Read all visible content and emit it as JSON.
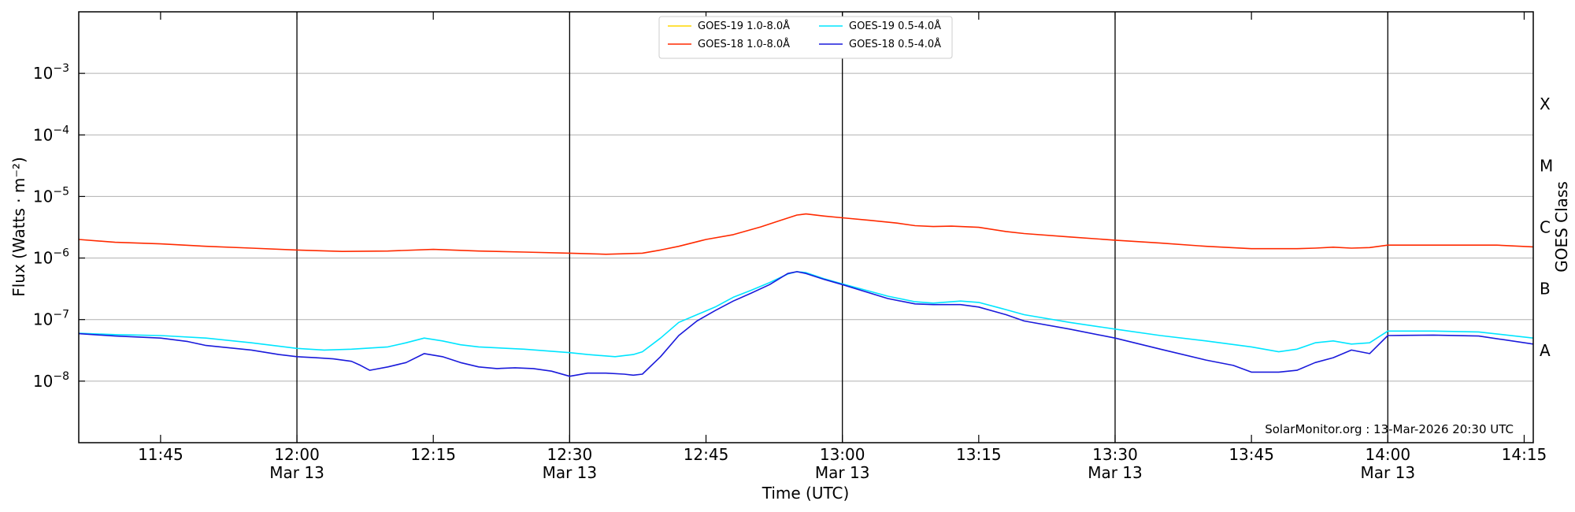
{
  "chart_data": {
    "type": "line",
    "xlabel": "Time (UTC)",
    "ylabel": "Flux (Watts · m⁻²)",
    "right_ylabel": "GOES Class",
    "credit": "SolarMonitor.org : 13-Mar-2026 20:30 UTC",
    "x_unit": "minutes after 11:30 UTC, 13-Mar-2026",
    "xlim": [
      6,
      166
    ],
    "ylim": [
      1e-09,
      0.01
    ],
    "yscale": "log",
    "grid": "horizontal",
    "legend_position": "top-center",
    "x_ticks": [
      {
        "x": 15,
        "label": "11:45",
        "sublabel": ""
      },
      {
        "x": 30,
        "label": "12:00",
        "sublabel": "Mar 13"
      },
      {
        "x": 45,
        "label": "12:15",
        "sublabel": ""
      },
      {
        "x": 60,
        "label": "12:30",
        "sublabel": "Mar 13"
      },
      {
        "x": 75,
        "label": "12:45",
        "sublabel": ""
      },
      {
        "x": 90,
        "label": "13:00",
        "sublabel": "Mar 13"
      },
      {
        "x": 105,
        "label": "13:15",
        "sublabel": ""
      },
      {
        "x": 120,
        "label": "13:30",
        "sublabel": "Mar 13"
      },
      {
        "x": 135,
        "label": "13:45",
        "sublabel": ""
      },
      {
        "x": 150,
        "label": "14:00",
        "sublabel": "Mar 13"
      },
      {
        "x": 165,
        "label": "14:15",
        "sublabel": ""
      }
    ],
    "vlines": [
      30,
      60,
      90,
      120,
      150
    ],
    "y_ticks": [
      {
        "exp": -8,
        "label": "10",
        "sup": "−8"
      },
      {
        "exp": -7,
        "label": "10",
        "sup": "−7"
      },
      {
        "exp": -6,
        "label": "10",
        "sup": "−6"
      },
      {
        "exp": -5,
        "label": "10",
        "sup": "−5"
      },
      {
        "exp": -4,
        "label": "10",
        "sup": "−4"
      },
      {
        "exp": -3,
        "label": "10",
        "sup": "−3"
      }
    ],
    "goes_classes": [
      {
        "label": "A",
        "exp": -7.5
      },
      {
        "label": "B",
        "exp": -6.5
      },
      {
        "label": "C",
        "exp": -5.5
      },
      {
        "label": "M",
        "exp": -4.5
      },
      {
        "label": "X",
        "exp": -3.5
      }
    ],
    "series": [
      {
        "name": "GOES-19 1.0-8.0Å",
        "color": "#ffd700",
        "x": [],
        "y": []
      },
      {
        "name": "GOES-18 1.0-8.0Å",
        "color": "#ff2a00",
        "x": [
          6,
          10,
          15,
          20,
          25,
          30,
          35,
          40,
          45,
          50,
          55,
          60,
          64,
          68,
          70,
          72,
          75,
          78,
          81,
          83,
          85,
          86,
          88,
          90,
          93,
          96,
          98,
          100,
          102,
          105,
          108,
          110,
          115,
          120,
          125,
          130,
          135,
          138,
          140,
          142,
          144,
          146,
          148,
          150,
          154,
          158,
          162,
          166
        ],
        "y": [
          2e-06,
          1.8e-06,
          1.7e-06,
          1.55e-06,
          1.45e-06,
          1.35e-06,
          1.28e-06,
          1.3e-06,
          1.38e-06,
          1.3e-06,
          1.25e-06,
          1.2e-06,
          1.15e-06,
          1.2e-06,
          1.35e-06,
          1.55e-06,
          2e-06,
          2.4e-06,
          3.2e-06,
          4e-06,
          5e-06,
          5.2e-06,
          4.8e-06,
          4.5e-06,
          4.1e-06,
          3.7e-06,
          3.35e-06,
          3.25e-06,
          3.3e-06,
          3.15e-06,
          2.7e-06,
          2.5e-06,
          2.2e-06,
          1.95e-06,
          1.75e-06,
          1.55e-06,
          1.42e-06,
          1.42e-06,
          1.42e-06,
          1.45e-06,
          1.5e-06,
          1.45e-06,
          1.48e-06,
          1.62e-06,
          1.62e-06,
          1.62e-06,
          1.62e-06,
          1.52e-06
        ]
      },
      {
        "name": "GOES-19 0.5-4.0Å",
        "color": "#00e5ff",
        "x": [
          6,
          10,
          15,
          20,
          25,
          30,
          33,
          36,
          40,
          42,
          44,
          46,
          48,
          50,
          55,
          60,
          62,
          65,
          67,
          68,
          70,
          72,
          74,
          76,
          78,
          80,
          82,
          84,
          85,
          86,
          88,
          90,
          95,
          98,
          100,
          103,
          105,
          108,
          110,
          115,
          120,
          125,
          130,
          135,
          138,
          140,
          142,
          144,
          146,
          148,
          150,
          155,
          160,
          166
        ],
        "y": [
          6e-08,
          5.7e-08,
          5.5e-08,
          5e-08,
          4.2e-08,
          3.4e-08,
          3.2e-08,
          3.3e-08,
          3.6e-08,
          4.2e-08,
          5e-08,
          4.5e-08,
          3.9e-08,
          3.6e-08,
          3.3e-08,
          2.9e-08,
          2.7e-08,
          2.5e-08,
          2.7e-08,
          3e-08,
          5e-08,
          9e-08,
          1.2e-07,
          1.6e-07,
          2.3e-07,
          3e-07,
          4e-07,
          5.5e-07,
          6e-07,
          5.8e-07,
          4.6e-07,
          3.8e-07,
          2.4e-07,
          1.95e-07,
          1.85e-07,
          2e-07,
          1.9e-07,
          1.45e-07,
          1.2e-07,
          9e-08,
          7e-08,
          5.5e-08,
          4.5e-08,
          3.6e-08,
          3e-08,
          3.3e-08,
          4.2e-08,
          4.5e-08,
          4e-08,
          4.2e-08,
          6.5e-08,
          6.5e-08,
          6.3e-08,
          5e-08
        ]
      },
      {
        "name": "GOES-18 0.5-4.0Å",
        "color": "#1a1adb",
        "x": [
          6,
          10,
          15,
          18,
          20,
          25,
          28,
          30,
          32,
          34,
          36,
          37,
          38,
          40,
          42,
          44,
          46,
          48,
          50,
          52,
          54,
          56,
          58,
          60,
          62,
          64,
          66,
          67,
          68,
          70,
          72,
          74,
          76,
          78,
          80,
          82,
          84,
          85,
          86,
          88,
          90,
          95,
          98,
          100,
          103,
          105,
          108,
          110,
          115,
          120,
          125,
          130,
          133,
          135,
          138,
          140,
          142,
          144,
          146,
          148,
          150,
          155,
          160,
          166
        ],
        "y": [
          5.9e-08,
          5.4e-08,
          5e-08,
          4.4e-08,
          3.8e-08,
          3.2e-08,
          2.7e-08,
          2.5e-08,
          2.4e-08,
          2.3e-08,
          2.1e-08,
          1.8e-08,
          1.5e-08,
          1.7e-08,
          2e-08,
          2.8e-08,
          2.5e-08,
          2e-08,
          1.7e-08,
          1.6e-08,
          1.65e-08,
          1.6e-08,
          1.45e-08,
          1.2e-08,
          1.35e-08,
          1.35e-08,
          1.3e-08,
          1.25e-08,
          1.3e-08,
          2.5e-08,
          5.5e-08,
          9.5e-08,
          1.4e-07,
          2e-07,
          2.7e-07,
          3.7e-07,
          5.6e-07,
          6e-07,
          5.6e-07,
          4.5e-07,
          3.7e-07,
          2.2e-07,
          1.8e-07,
          1.75e-07,
          1.75e-07,
          1.6e-07,
          1.2e-07,
          9.5e-08,
          7e-08,
          5e-08,
          3.3e-08,
          2.2e-08,
          1.8e-08,
          1.4e-08,
          1.4e-08,
          1.5e-08,
          2e-08,
          2.4e-08,
          3.2e-08,
          2.8e-08,
          5.5e-08,
          5.6e-08,
          5.4e-08,
          4e-08
        ]
      }
    ]
  }
}
